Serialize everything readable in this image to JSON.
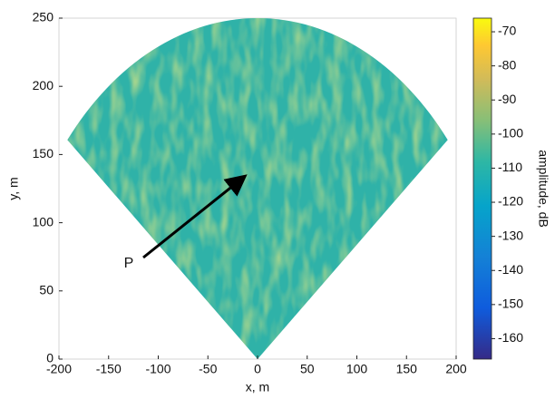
{
  "chart_data": {
    "type": "sector-map",
    "xlabel": "x, m",
    "ylabel": "y, m",
    "xlim": [
      -200,
      200
    ],
    "xticks": [
      -200,
      -150,
      -100,
      -50,
      0,
      50,
      100,
      150,
      200
    ],
    "ylim": [
      0,
      250
    ],
    "yticks": [
      0,
      50,
      100,
      150,
      200,
      250
    ],
    "colorbar": {
      "label": "amplitude, dB",
      "clim": [
        -166,
        -66
      ],
      "ticks": [
        -70,
        -80,
        -90,
        -100,
        -110,
        -120,
        -130,
        -140,
        -150,
        -160
      ]
    },
    "annotation": "P"
  }
}
